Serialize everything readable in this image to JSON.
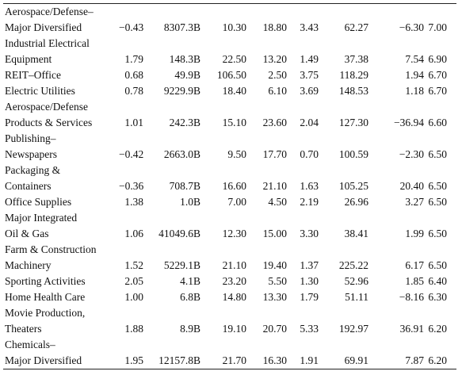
{
  "table": {
    "rows": [
      {
        "name": [
          "Aerospace/Defense–",
          "Major Diversified"
        ],
        "cells": [
          "−0.43",
          "8307.3B",
          "10.30",
          "18.80",
          "3.43",
          "62.27",
          "−6.30",
          "7.00"
        ]
      },
      {
        "name": [
          "Industrial Electrical",
          "Equipment"
        ],
        "cells": [
          "1.79",
          "148.3B",
          "22.50",
          "13.20",
          "1.49",
          "37.38",
          "7.54",
          "6.90"
        ]
      },
      {
        "name": [
          "REIT–Office"
        ],
        "cells": [
          "0.68",
          "49.9B",
          "106.50",
          "2.50",
          "3.75",
          "118.29",
          "1.94",
          "6.70"
        ]
      },
      {
        "name": [
          "Electric Utilities"
        ],
        "cells": [
          "0.78",
          "9229.9B",
          "18.40",
          "6.10",
          "3.69",
          "148.53",
          "1.18",
          "6.70"
        ]
      },
      {
        "name": [
          "Aerospace/Defense",
          "Products & Services"
        ],
        "cells": [
          "1.01",
          "242.3B",
          "15.10",
          "23.60",
          "2.04",
          "127.30",
          "−36.94",
          "6.60"
        ]
      },
      {
        "name": [
          "Publishing–",
          "Newspapers"
        ],
        "cells": [
          "−0.42",
          "2663.0B",
          "9.50",
          "17.70",
          "0.70",
          "100.59",
          "−2.30",
          "6.50"
        ]
      },
      {
        "name": [
          "Packaging &",
          "Containers"
        ],
        "cells": [
          "−0.36",
          "708.7B",
          "16.60",
          "21.10",
          "1.63",
          "105.25",
          "20.40",
          "6.50"
        ]
      },
      {
        "name": [
          "Office Supplies"
        ],
        "cells": [
          "1.38",
          "1.0B",
          "7.00",
          "4.50",
          "2.19",
          "26.96",
          "3.27",
          "6.50"
        ]
      },
      {
        "name": [
          "Major Integrated",
          "Oil & Gas"
        ],
        "cells": [
          "1.06",
          "41049.6B",
          "12.30",
          "15.00",
          "3.30",
          "38.41",
          "1.99",
          "6.50"
        ]
      },
      {
        "name": [
          "Farm & Construction",
          "Machinery"
        ],
        "cells": [
          "1.52",
          "5229.1B",
          "21.10",
          "19.40",
          "1.37",
          "225.22",
          "6.17",
          "6.50"
        ]
      },
      {
        "name": [
          "Sporting Activities"
        ],
        "cells": [
          "2.05",
          "4.1B",
          "23.20",
          "5.50",
          "1.30",
          "52.96",
          "1.85",
          "6.40"
        ]
      },
      {
        "name": [
          "Home Health Care"
        ],
        "cells": [
          "1.00",
          "6.8B",
          "14.80",
          "13.30",
          "1.79",
          "51.11",
          "−8.16",
          "6.30"
        ]
      },
      {
        "name": [
          "Movie Production,",
          "Theaters"
        ],
        "cells": [
          "1.88",
          "8.9B",
          "19.10",
          "20.70",
          "5.33",
          "192.97",
          "36.91",
          "6.20"
        ]
      },
      {
        "name": [
          "Chemicals–",
          "Major Diversified"
        ],
        "cells": [
          "1.95",
          "12157.8B",
          "21.70",
          "16.30",
          "1.91",
          "69.91",
          "7.87",
          "6.20"
        ]
      }
    ]
  }
}
